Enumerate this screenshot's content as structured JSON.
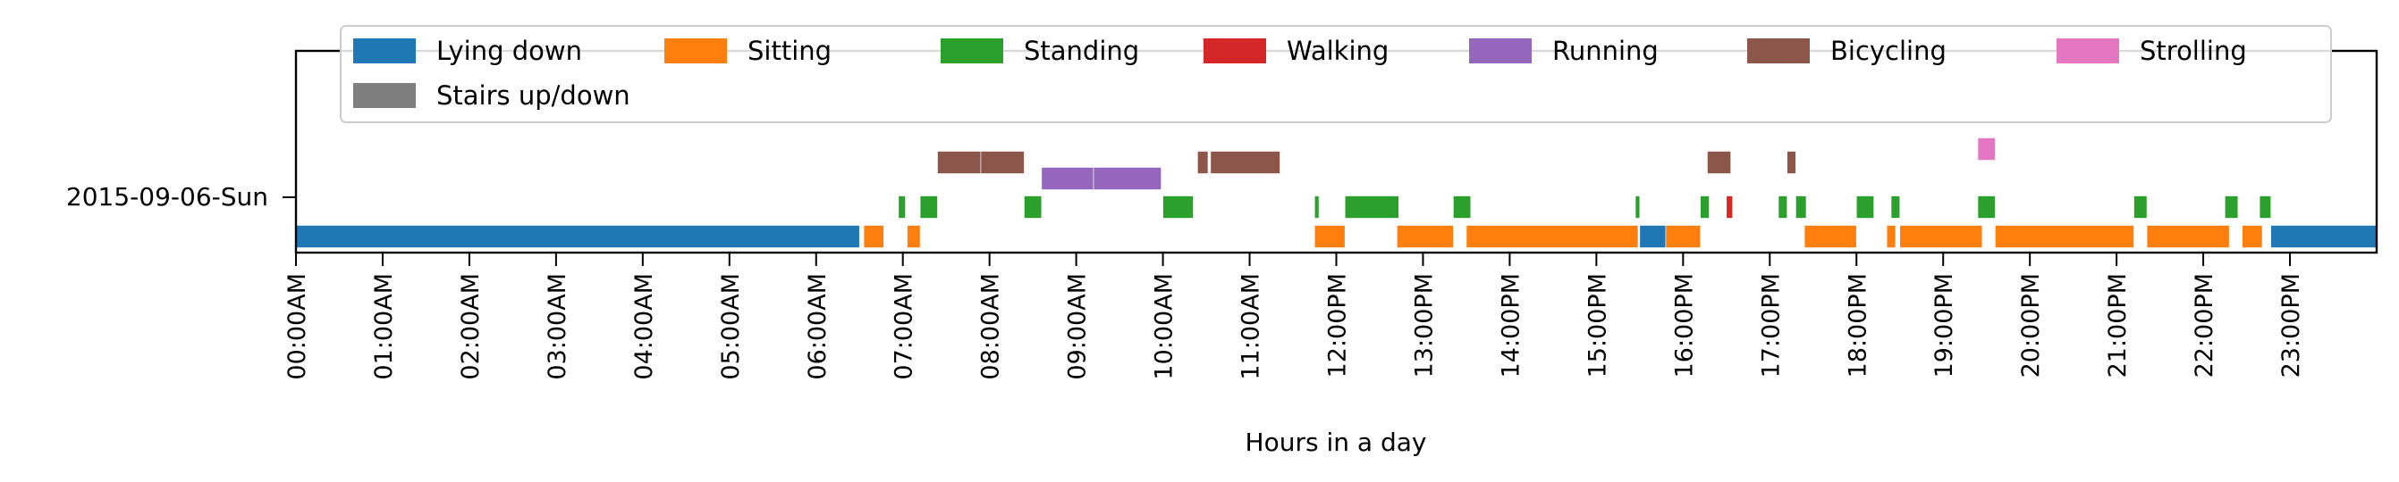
{
  "chart_data": {
    "type": "timeline",
    "xlabel": "Hours in a day",
    "row_label": "2015-09-06-Sun",
    "xlim": [
      0,
      24
    ],
    "x_ticks": [
      {
        "hour": 0,
        "label": "00:00AM"
      },
      {
        "hour": 1,
        "label": "01:00AM"
      },
      {
        "hour": 2,
        "label": "02:00AM"
      },
      {
        "hour": 3,
        "label": "03:00AM"
      },
      {
        "hour": 4,
        "label": "04:00AM"
      },
      {
        "hour": 5,
        "label": "05:00AM"
      },
      {
        "hour": 6,
        "label": "06:00AM"
      },
      {
        "hour": 7,
        "label": "07:00AM"
      },
      {
        "hour": 8,
        "label": "08:00AM"
      },
      {
        "hour": 9,
        "label": "09:00AM"
      },
      {
        "hour": 10,
        "label": "10:00AM"
      },
      {
        "hour": 11,
        "label": "11:00AM"
      },
      {
        "hour": 12,
        "label": "12:00PM"
      },
      {
        "hour": 13,
        "label": "13:00PM"
      },
      {
        "hour": 14,
        "label": "14:00PM"
      },
      {
        "hour": 15,
        "label": "15:00PM"
      },
      {
        "hour": 16,
        "label": "16:00PM"
      },
      {
        "hour": 17,
        "label": "17:00PM"
      },
      {
        "hour": 18,
        "label": "18:00PM"
      },
      {
        "hour": 19,
        "label": "19:00PM"
      },
      {
        "hour": 20,
        "label": "20:00PM"
      },
      {
        "hour": 21,
        "label": "21:00PM"
      },
      {
        "hour": 22,
        "label": "22:00PM"
      },
      {
        "hour": 23,
        "label": "23:00PM"
      }
    ],
    "legend_position": "top",
    "series": [
      {
        "name": "Lying down",
        "color": "#1f77b4",
        "level": 0,
        "segments": [
          [
            0.0,
            6.5
          ],
          [
            15.5,
            15.8
          ],
          [
            22.78,
            24.0
          ]
        ]
      },
      {
        "name": "Sitting",
        "color": "#ff7f0e",
        "level": 0,
        "segments": [
          [
            6.55,
            6.78
          ],
          [
            7.05,
            7.2
          ],
          [
            11.75,
            12.1
          ],
          [
            12.7,
            13.35
          ],
          [
            13.5,
            15.48
          ],
          [
            15.8,
            16.2
          ],
          [
            17.4,
            18.0
          ],
          [
            18.35,
            18.45
          ],
          [
            18.5,
            19.45
          ],
          [
            19.6,
            21.2
          ],
          [
            21.35,
            22.3
          ],
          [
            22.45,
            22.68
          ]
        ]
      },
      {
        "name": "Standing",
        "color": "#2ca02c",
        "level": 1,
        "segments": [
          [
            6.95,
            7.03
          ],
          [
            7.2,
            7.4
          ],
          [
            8.4,
            8.6
          ],
          [
            10.0,
            10.35
          ],
          [
            11.75,
            11.8
          ],
          [
            12.1,
            12.72
          ],
          [
            13.35,
            13.55
          ],
          [
            15.45,
            15.5
          ],
          [
            16.2,
            16.3
          ],
          [
            17.1,
            17.2
          ],
          [
            17.3,
            17.42
          ],
          [
            18.0,
            18.2
          ],
          [
            18.4,
            18.5
          ],
          [
            19.4,
            19.6
          ],
          [
            21.2,
            21.35
          ],
          [
            22.25,
            22.4
          ],
          [
            22.65,
            22.78
          ]
        ]
      },
      {
        "name": "Walking",
        "color": "#d62728",
        "level": 1,
        "segments": [
          [
            16.5,
            16.57
          ]
        ]
      },
      {
        "name": "Running",
        "color": "#9467bd",
        "level": 2,
        "segments": [
          [
            8.6,
            9.2
          ],
          [
            9.2,
            9.98
          ]
        ]
      },
      {
        "name": "Bicycling",
        "color": "#8c564b",
        "level": 3,
        "segments": [
          [
            7.4,
            7.9
          ],
          [
            7.9,
            8.4
          ],
          [
            10.4,
            10.52
          ],
          [
            10.55,
            11.35
          ],
          [
            16.28,
            16.55
          ],
          [
            17.2,
            17.3
          ]
        ]
      },
      {
        "name": "Strolling",
        "color": "#e377c2",
        "level": 4,
        "segments": [
          [
            19.4,
            19.6
          ]
        ]
      },
      {
        "name": "Stairs up/down",
        "color": "#7f7f7f",
        "level": 5,
        "segments": []
      }
    ]
  }
}
